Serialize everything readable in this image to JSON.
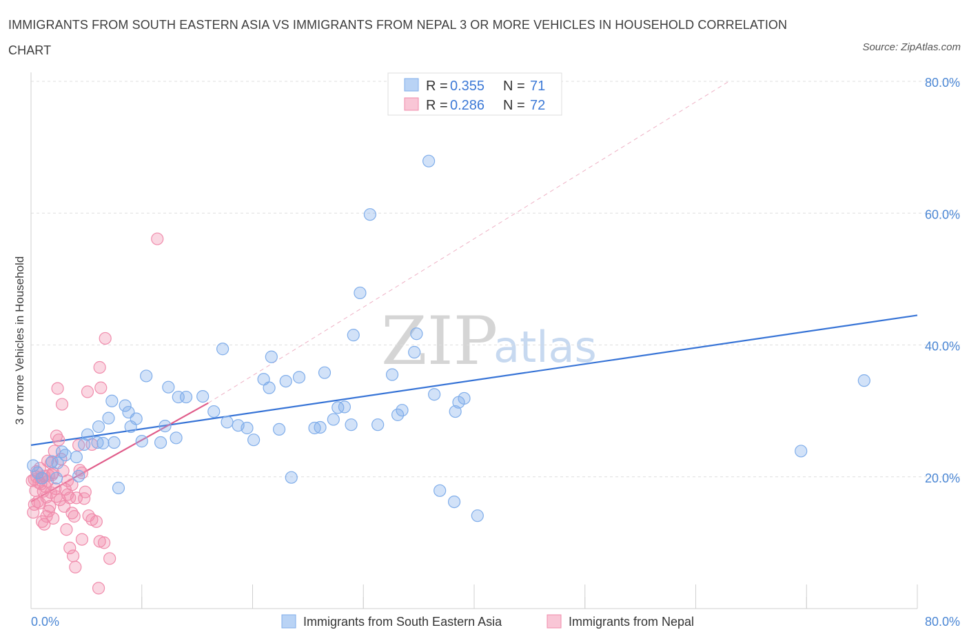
{
  "chart_title": "IMMIGRANTS FROM SOUTH EASTERN ASIA VS IMMIGRANTS FROM NEPAL 3 OR MORE VEHICLES IN HOUSEHOLD CORRELATION CHART",
  "source": "Source: ZipAtlas.com",
  "watermark": {
    "zip": "ZIP",
    "atlas": "atlas"
  },
  "colors": {
    "blue": "#7fadea",
    "blue_line": "#3673d6",
    "pink": "#f08bab",
    "pink_line": "#e05c8a"
  },
  "legend_top": [
    {
      "r_label": "R =",
      "r_value": "0.355",
      "n_label": "N =",
      "n_value": "71"
    },
    {
      "r_label": "R =",
      "r_value": "0.286",
      "n_label": "N =",
      "n_value": "72"
    }
  ],
  "legend_bottom": [
    "Immigrants from South Eastern Asia",
    "Immigrants from Nepal"
  ],
  "chart_data": {
    "type": "scatter",
    "title": "IMMIGRANTS FROM SOUTH EASTERN ASIA VS IMMIGRANTS FROM NEPAL 3 OR MORE VEHICLES IN HOUSEHOLD CORRELATION CHART",
    "xlabel": "",
    "ylabel": "3 or more Vehicles in Household",
    "xlim": [
      0,
      80
    ],
    "ylim": [
      0,
      80
    ],
    "x_ticks": [
      "0.0%",
      "80.0%"
    ],
    "y_ticks": [
      {
        "value": 20,
        "label": "20.0%"
      },
      {
        "value": 40,
        "label": "40.0%"
      },
      {
        "value": 60,
        "label": "60.0%"
      },
      {
        "value": 80,
        "label": "80.0%"
      }
    ],
    "series": [
      {
        "name": "Immigrants from South Eastern Asia",
        "R": 0.355,
        "N": 71,
        "trend": {
          "x0": 0,
          "y0": 24.8,
          "x1": 80,
          "y1": 44.5
        },
        "points": [
          [
            0.2,
            21.7
          ],
          [
            0.6,
            20.6
          ],
          [
            1.0,
            19.8
          ],
          [
            1.9,
            22.3
          ],
          [
            2.8,
            23.8
          ],
          [
            3.1,
            23.3
          ],
          [
            2.4,
            22.1
          ],
          [
            4.3,
            20.1
          ],
          [
            4.1,
            23.0
          ],
          [
            4.8,
            24.9
          ],
          [
            5.1,
            26.4
          ],
          [
            6.0,
            25.2
          ],
          [
            6.5,
            25.1
          ],
          [
            7.9,
            18.3
          ],
          [
            7.5,
            25.2
          ],
          [
            6.1,
            27.6
          ],
          [
            7.0,
            28.9
          ],
          [
            8.5,
            30.8
          ],
          [
            7.3,
            31.5
          ],
          [
            9.0,
            27.6
          ],
          [
            9.5,
            28.8
          ],
          [
            10.0,
            25.4
          ],
          [
            8.8,
            29.8
          ],
          [
            13.1,
            25.9
          ],
          [
            12.1,
            27.7
          ],
          [
            13.3,
            32.1
          ],
          [
            14.0,
            32.1
          ],
          [
            12.4,
            33.6
          ],
          [
            15.5,
            32.2
          ],
          [
            16.5,
            29.9
          ],
          [
            17.7,
            28.3
          ],
          [
            18.7,
            27.8
          ],
          [
            19.5,
            27.4
          ],
          [
            20.1,
            25.6
          ],
          [
            21.0,
            34.8
          ],
          [
            21.5,
            33.5
          ],
          [
            21.7,
            38.2
          ],
          [
            23.0,
            34.5
          ],
          [
            22.4,
            27.2
          ],
          [
            23.5,
            19.9
          ],
          [
            24.2,
            35.1
          ],
          [
            25.6,
            27.4
          ],
          [
            26.1,
            27.5
          ],
          [
            26.5,
            35.8
          ],
          [
            27.3,
            28.7
          ],
          [
            27.7,
            30.5
          ],
          [
            28.3,
            30.6
          ],
          [
            28.9,
            27.9
          ],
          [
            29.1,
            41.5
          ],
          [
            29.7,
            47.9
          ],
          [
            30.6,
            59.8
          ],
          [
            31.3,
            27.9
          ],
          [
            32.6,
            35.5
          ],
          [
            33.1,
            29.4
          ],
          [
            33.5,
            30.1
          ],
          [
            34.6,
            38.9
          ],
          [
            34.8,
            41.7
          ],
          [
            35.9,
            67.9
          ],
          [
            36.4,
            32.5
          ],
          [
            36.9,
            17.9
          ],
          [
            38.2,
            16.2
          ],
          [
            38.3,
            29.9
          ],
          [
            38.6,
            31.3
          ],
          [
            39.1,
            31.9
          ],
          [
            40.3,
            14.1
          ],
          [
            17.3,
            39.4
          ],
          [
            10.4,
            35.3
          ],
          [
            11.7,
            25.2
          ],
          [
            2.3,
            19.8
          ],
          [
            69.5,
            23.9
          ],
          [
            75.2,
            34.6
          ]
        ]
      },
      {
        "name": "Immigrants from Nepal",
        "R": 0.286,
        "N": 72,
        "trend": {
          "x0": 0,
          "y0": 16.2,
          "x1": 16,
          "y1": 31.2
        },
        "dashed_extension": {
          "x0": 16,
          "y0": 31.2,
          "x1": 63,
          "y1": 80
        },
        "points": [
          [
            0.1,
            19.4
          ],
          [
            0.3,
            19.6
          ],
          [
            0.5,
            20.0
          ],
          [
            0.7,
            19.1
          ],
          [
            0.9,
            19.8
          ],
          [
            1.1,
            17.8
          ],
          [
            1.3,
            18.5
          ],
          [
            1.5,
            19.3
          ],
          [
            1.6,
            20.2
          ],
          [
            1.8,
            17.6
          ],
          [
            2.0,
            20.6
          ],
          [
            0.2,
            14.6
          ],
          [
            0.4,
            17.9
          ],
          [
            0.6,
            16.2
          ],
          [
            0.8,
            16.0
          ],
          [
            1.0,
            13.2
          ],
          [
            1.2,
            12.8
          ],
          [
            1.4,
            14.0
          ],
          [
            1.6,
            14.8
          ],
          [
            1.8,
            22.1
          ],
          [
            2.1,
            23.9
          ],
          [
            2.3,
            26.2
          ],
          [
            2.5,
            25.6
          ],
          [
            2.7,
            22.7
          ],
          [
            2.9,
            20.9
          ],
          [
            3.1,
            18.1
          ],
          [
            3.3,
            17.3
          ],
          [
            3.5,
            16.8
          ],
          [
            3.7,
            14.5
          ],
          [
            3.9,
            14.0
          ],
          [
            4.1,
            16.8
          ],
          [
            4.4,
            21.0
          ],
          [
            4.6,
            20.6
          ],
          [
            4.9,
            17.7
          ],
          [
            5.2,
            14.1
          ],
          [
            5.5,
            13.5
          ],
          [
            5.9,
            13.2
          ],
          [
            6.2,
            10.2
          ],
          [
            6.6,
            10.0
          ],
          [
            7.1,
            7.6
          ],
          [
            2.3,
            17.0
          ],
          [
            2.4,
            33.4
          ],
          [
            2.8,
            31.0
          ],
          [
            3.0,
            15.5
          ],
          [
            3.2,
            12.0
          ],
          [
            3.5,
            9.2
          ],
          [
            3.8,
            8.0
          ],
          [
            4.0,
            6.3
          ],
          [
            5.1,
            32.9
          ],
          [
            6.3,
            33.5
          ],
          [
            6.2,
            36.6
          ],
          [
            6.7,
            41.0
          ],
          [
            11.4,
            56.1
          ],
          [
            4.6,
            10.5
          ],
          [
            6.1,
            3.1
          ],
          [
            1.5,
            22.4
          ],
          [
            1.9,
            20.3
          ],
          [
            2.2,
            18.2
          ],
          [
            0.5,
            20.8
          ],
          [
            0.9,
            18.9
          ],
          [
            1.4,
            16.9
          ],
          [
            1.7,
            15.5
          ],
          [
            2.6,
            16.5
          ],
          [
            3.3,
            19.4
          ],
          [
            3.7,
            18.8
          ],
          [
            4.3,
            24.8
          ],
          [
            5.5,
            24.9
          ],
          [
            1.2,
            20.1
          ],
          [
            0.8,
            21.3
          ],
          [
            0.3,
            15.8
          ],
          [
            2.0,
            13.7
          ],
          [
            4.8,
            16.7
          ]
        ]
      }
    ]
  }
}
